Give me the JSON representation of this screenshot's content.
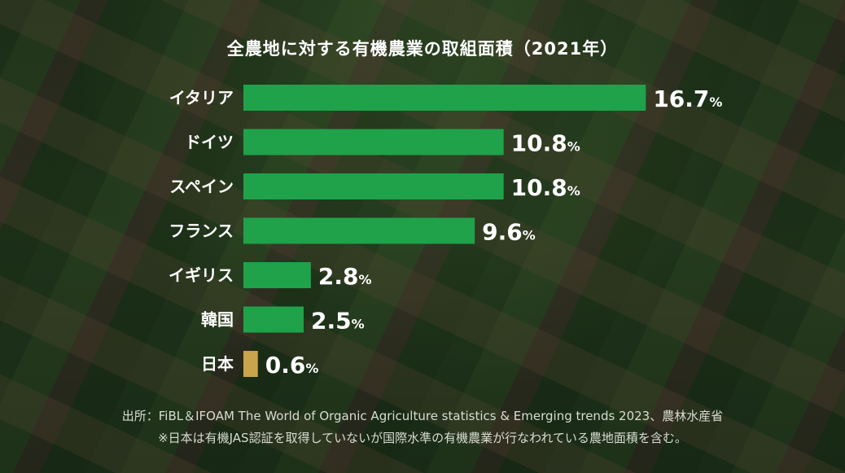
{
  "chart_data": {
    "type": "bar",
    "orientation": "horizontal",
    "title": "全農地に対する有機農業の取組面積（2021年）",
    "categories": [
      "イタリア",
      "ドイツ",
      "スペイン",
      "フランス",
      "イギリス",
      "韓国",
      "日本"
    ],
    "values": [
      16.7,
      10.8,
      10.8,
      9.6,
      2.8,
      2.5,
      0.6
    ],
    "value_labels": [
      "16.7",
      "10.8",
      "10.8",
      "9.6",
      "2.8",
      "2.5",
      "0.6"
    ],
    "unit": "%",
    "bar_colors": [
      "#1fa24a",
      "#1fa24a",
      "#1fa24a",
      "#1fa24a",
      "#1fa24a",
      "#1fa24a",
      "#c9a44c"
    ],
    "grid": false,
    "legend": "none"
  },
  "footnotes": {
    "source": "出所：FiBL＆IFOAM The World of Organic Agriculture statistics & Emerging trends 2023、農林水産省",
    "note": "※日本は有機JAS認証を取得していないが国際水準の有機農業が行なわれている農地面積を含む。"
  }
}
